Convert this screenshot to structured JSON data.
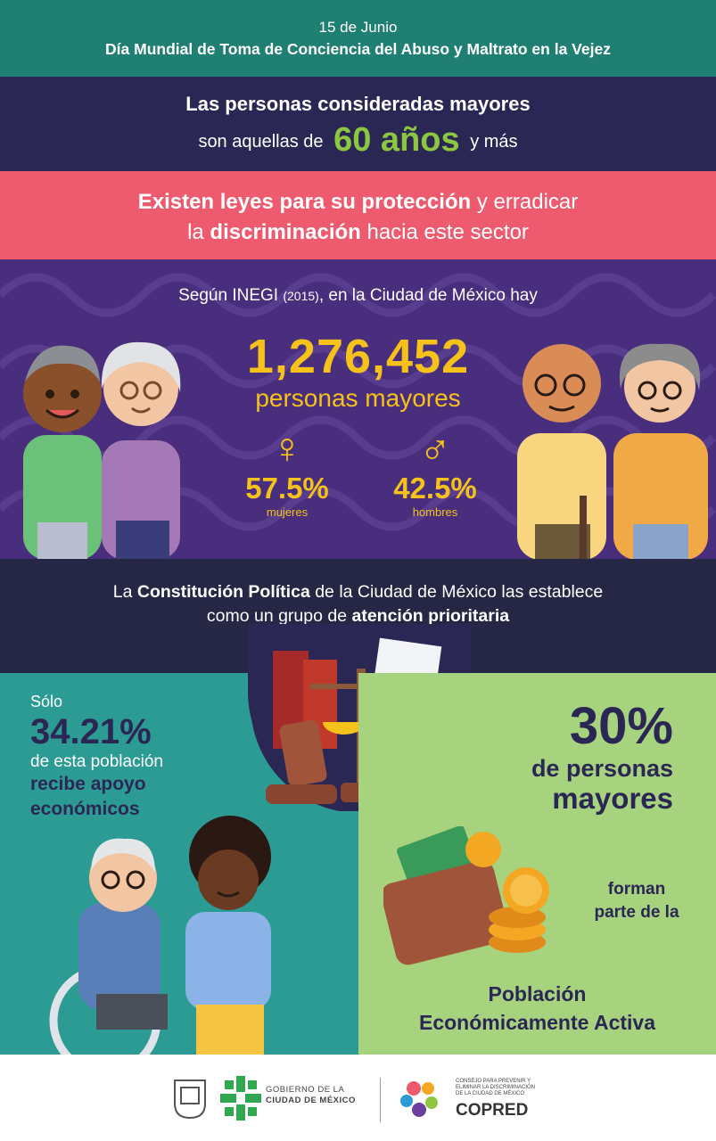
{
  "header": {
    "date": "15 de Junio",
    "title": "Día Mundial de Toma de Conciencia del Abuso y Maltrato en la Vejez"
  },
  "age_band": {
    "line1": "Las personas consideradas mayores",
    "line2_before": "son aquellas de",
    "line2_big": "60 años",
    "line2_after": "y más"
  },
  "laws_band": {
    "l1_bold": "Existen leyes para su protección",
    "l1_rest": " y erradicar",
    "l2_start": "la ",
    "l2_bold": "discriminación",
    "l2_rest": " hacia este sector"
  },
  "inegi": {
    "intro_a": "Según INEGI ",
    "intro_year": "(2015)",
    "intro_b": ", en la Ciudad de México hay",
    "count": "1,276,452",
    "count_label": "personas mayores",
    "women_symbol": "♀",
    "women_pct": "57.5%",
    "women_label": "mujeres",
    "men_symbol": "♂",
    "men_pct": "42.5%",
    "men_label": "hombres"
  },
  "constitution": {
    "a": "La ",
    "b_bold": "Constitución Política",
    "c": " de la Ciudad de México las establece",
    "d": "como un grupo de ",
    "e_bold": "atención prioritaria"
  },
  "support": {
    "solo": "Sólo",
    "pct": "34.21%",
    "desc": "de esta población",
    "strong1": "recibe apoyo",
    "strong2": "económicos"
  },
  "workforce": {
    "pct": "30%",
    "l1": "de personas",
    "l2": "mayores",
    "forman1": "forman",
    "forman2": "parte de la",
    "pea1": "Población",
    "pea2": "Económicamente Activa"
  },
  "footer": {
    "gob1": "GOBIERNO DE LA",
    "gob2": "CIUDAD DE MÉXICO",
    "copred_small1": "CONSEJO PARA PREVENIR Y",
    "copred_small2": "ELIMINAR LA DISCRIMINACIÓN",
    "copred_small3": "DE LA CIUDAD DE MÉXICO",
    "copred": "COPRED"
  },
  "colors": {
    "teal": "#1f7f73",
    "navy": "#2b2755",
    "pink": "#ee5a6e",
    "purple": "#4a2e7e",
    "yellow": "#f5c21a",
    "green_accent": "#8dc63f"
  }
}
